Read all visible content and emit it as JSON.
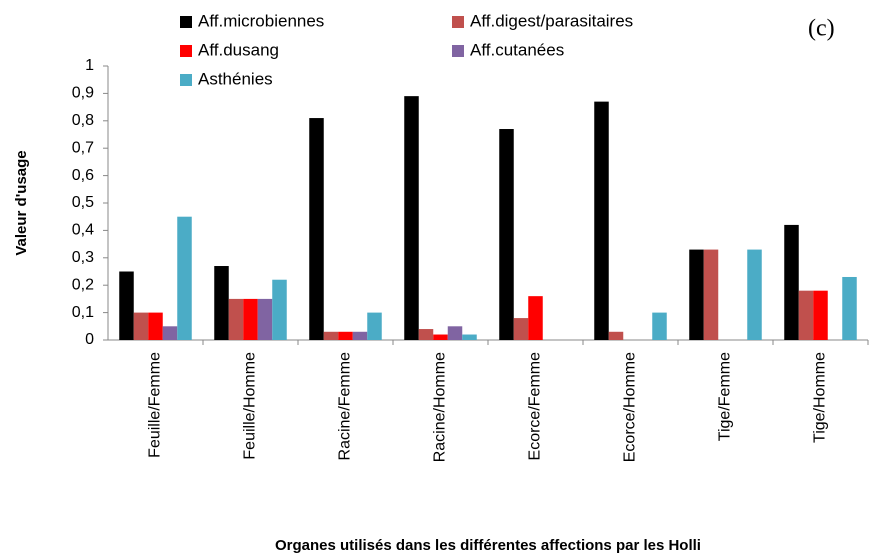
{
  "chart_data": {
    "type": "bar",
    "annotation": "(c)",
    "y_label": "Valeur d'usage",
    "x_label": "Organes utilisés dans les différentes affections  par les Holli",
    "categories": [
      "Feuille/Femme",
      "Feuille/Homme",
      "Racine/Femme",
      "Racine/Homme",
      "Ecorce/Femme",
      "Ecorce/Homme",
      "Tige/Femme",
      "Tige/Homme"
    ],
    "series": [
      {
        "name": "Aff.microbiennes",
        "color": "#000000",
        "values": [
          0.25,
          0.27,
          0.81,
          0.89,
          0.77,
          0.87,
          0.33,
          0.42
        ]
      },
      {
        "name": "Aff.digest/parasitaires",
        "color": "#c0504d",
        "values": [
          0.1,
          0.15,
          0.03,
          0.04,
          0.08,
          0.03,
          0.33,
          0.18
        ]
      },
      {
        "name": "Aff.dusang",
        "color": "#ff0000",
        "values": [
          0.1,
          0.15,
          0.03,
          0.02,
          0.16,
          0,
          0,
          0.18
        ]
      },
      {
        "name": "Aff.cutanées",
        "color": "#8064a2",
        "values": [
          0.05,
          0.15,
          0.03,
          0.05,
          0,
          0,
          0,
          0
        ]
      },
      {
        "name": "Asthénies",
        "color": "#4bacc6",
        "values": [
          0.45,
          0.22,
          0.1,
          0.02,
          0,
          0.1,
          0.33,
          0.23
        ]
      }
    ],
    "ylim": [
      0,
      1
    ],
    "yticks": [
      0,
      {
        "value": 0.1,
        "label": "0,1"
      },
      {
        "value": 0.2,
        "label": "0,2"
      },
      {
        "value": 0.3,
        "label": "0,3"
      },
      {
        "value": 0.4,
        "label": "0,4"
      },
      {
        "value": 0.5,
        "label": "0,5"
      },
      {
        "value": 0.6,
        "label": "0,6"
      },
      {
        "value": 0.7,
        "label": "0,7"
      },
      {
        "value": 0.8,
        "label": "0,8"
      },
      {
        "value": 0.9,
        "label": "0,9"
      },
      1
    ],
    "grid": false
  }
}
